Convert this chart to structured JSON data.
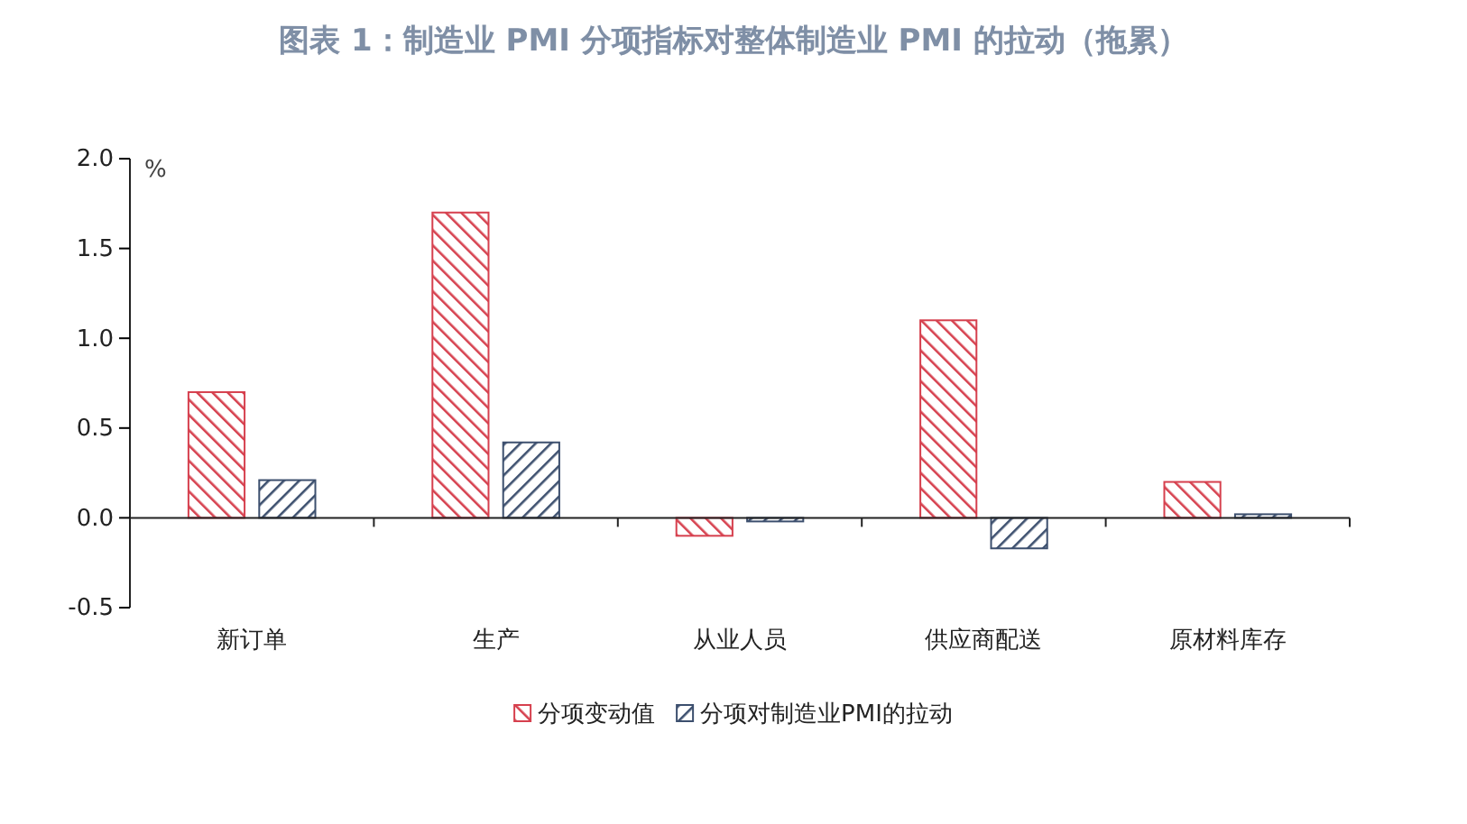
{
  "chart_data": {
    "type": "bar",
    "title": "图表 1：制造业 PMI 分项指标对整体制造业 PMI 的拉动（拖累）",
    "ylabel": "%",
    "categories": [
      "新订单",
      "生产",
      "从业人员",
      "供应商配送",
      "原材料库存"
    ],
    "series": [
      {
        "name": "分项变动值",
        "color": "#d6404e",
        "values": [
          0.7,
          1.7,
          -0.1,
          1.1,
          0.2
        ]
      },
      {
        "name": "分项对制造业PMI的拉动",
        "color": "#3c4f6e",
        "values": [
          0.21,
          0.42,
          -0.02,
          -0.17,
          0.02
        ]
      }
    ],
    "ylim": [
      -0.5,
      2.0
    ],
    "yticks": [
      {
        "value": -0.5,
        "label": "-0.5"
      },
      {
        "value": 0,
        "label": "0.0"
      },
      {
        "value": 0.5,
        "label": "0.5"
      },
      {
        "value": 1,
        "label": "1.0"
      },
      {
        "value": 1.5,
        "label": "1.5"
      },
      {
        "value": 2,
        "label": "2.0"
      }
    ],
    "legend": "bottom"
  }
}
